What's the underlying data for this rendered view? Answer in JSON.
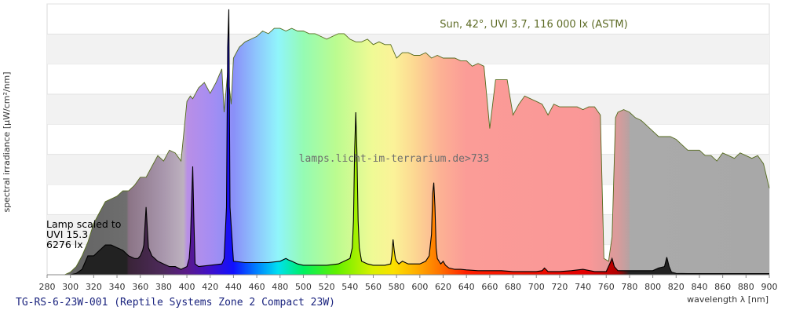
{
  "chart_data": {
    "type": "area",
    "title": "TG-RS-6-23W-001 (Reptile Systems Zone 2 Compact 23W)",
    "xlabel": "wavelength λ [nm]",
    "ylabel": "spectral irradiance [µW/cm²/nm]",
    "xlim": [
      280,
      900
    ],
    "x_ticks": [
      "280",
      "300",
      "320",
      "340",
      "360",
      "380",
      "400",
      "420",
      "440",
      "460",
      "480",
      "500",
      "520",
      "540",
      "560",
      "580",
      "600",
      "620",
      "640",
      "660",
      "680",
      "700",
      "720",
      "740",
      "760",
      "780",
      "800",
      "820",
      "840",
      "860",
      "880",
      "900"
    ],
    "ylim": [
      0,
      1
    ],
    "grid": "horizontal bands",
    "sun_label": "Sun, 42°, UVI 3.7, 116 000 lx (ASTM)",
    "lamp_label_lines": [
      "Lamp scaled to",
      "UVI 15.3",
      "6276 lx"
    ],
    "watermark": "lamps.licht-im-terrarium.de>733",
    "series": [
      {
        "name": "Sun, 42°, UVI 3.7, 116 000 lx (ASTM)",
        "x": [
          280,
          290,
          295,
          300,
          305,
          310,
          315,
          320,
          325,
          330,
          335,
          340,
          345,
          350,
          355,
          360,
          365,
          370,
          375,
          380,
          385,
          390,
          395,
          400,
          403,
          405,
          410,
          415,
          420,
          425,
          430,
          432,
          435,
          438,
          440,
          445,
          450,
          455,
          460,
          465,
          470,
          475,
          480,
          485,
          490,
          495,
          500,
          505,
          510,
          515,
          520,
          525,
          530,
          535,
          540,
          545,
          550,
          555,
          560,
          565,
          570,
          575,
          580,
          585,
          590,
          595,
          600,
          605,
          610,
          615,
          620,
          625,
          630,
          635,
          640,
          645,
          650,
          655,
          660,
          665,
          670,
          675,
          680,
          685,
          690,
          695,
          700,
          705,
          710,
          715,
          720,
          725,
          730,
          735,
          740,
          745,
          750,
          755,
          758,
          762,
          765,
          768,
          770,
          775,
          780,
          785,
          790,
          795,
          800,
          805,
          810,
          815,
          820,
          825,
          830,
          835,
          840,
          845,
          850,
          855,
          860,
          865,
          870,
          875,
          880,
          885,
          890,
          895,
          900
        ],
        "values": [
          0,
          0,
          0,
          0.01,
          0.03,
          0.07,
          0.12,
          0.19,
          0.23,
          0.27,
          0.28,
          0.29,
          0.31,
          0.31,
          0.33,
          0.36,
          0.36,
          0.4,
          0.44,
          0.42,
          0.46,
          0.45,
          0.42,
          0.64,
          0.66,
          0.65,
          0.69,
          0.71,
          0.67,
          0.71,
          0.76,
          0.6,
          0.75,
          0.63,
          0.8,
          0.84,
          0.86,
          0.87,
          0.88,
          0.9,
          0.89,
          0.91,
          0.91,
          0.9,
          0.91,
          0.9,
          0.9,
          0.89,
          0.89,
          0.88,
          0.87,
          0.88,
          0.89,
          0.89,
          0.87,
          0.86,
          0.86,
          0.87,
          0.85,
          0.86,
          0.85,
          0.85,
          0.8,
          0.82,
          0.82,
          0.81,
          0.81,
          0.82,
          0.8,
          0.81,
          0.8,
          0.8,
          0.8,
          0.79,
          0.79,
          0.77,
          0.78,
          0.77,
          0.54,
          0.72,
          0.72,
          0.72,
          0.59,
          0.63,
          0.66,
          0.65,
          0.64,
          0.63,
          0.59,
          0.63,
          0.62,
          0.62,
          0.62,
          0.62,
          0.61,
          0.62,
          0.62,
          0.59,
          0.06,
          0.05,
          0.14,
          0.58,
          0.6,
          0.61,
          0.6,
          0.58,
          0.57,
          0.55,
          0.53,
          0.51,
          0.51,
          0.51,
          0.5,
          0.48,
          0.46,
          0.46,
          0.46,
          0.44,
          0.44,
          0.42,
          0.45,
          0.44,
          0.43,
          0.45,
          0.44,
          0.43,
          0.44,
          0.41,
          0.32
        ]
      },
      {
        "name": "Lamp scaled to UVI 15.3, 6276 lx",
        "x": [
          280,
          295,
          300,
          305,
          310,
          315,
          320,
          325,
          330,
          335,
          340,
          345,
          350,
          355,
          358,
          360,
          362,
          363,
          365,
          367,
          370,
          375,
          380,
          385,
          390,
          395,
          400,
          402,
          403,
          405,
          406,
          407,
          410,
          420,
          430,
          432,
          434,
          435,
          436,
          437,
          440,
          450,
          460,
          470,
          480,
          485,
          487,
          490,
          495,
          500,
          510,
          520,
          530,
          540,
          542,
          543,
          544,
          545,
          546,
          547,
          548,
          550,
          555,
          560,
          570,
          575,
          576,
          577,
          578,
          579,
          580,
          582,
          585,
          590,
          595,
          600,
          605,
          608,
          610,
          611,
          612,
          613,
          614,
          615,
          618,
          620,
          622,
          625,
          630,
          635,
          640,
          650,
          660,
          670,
          680,
          690,
          700,
          705,
          707,
          710,
          720,
          730,
          740,
          750,
          760,
          763,
          765,
          767,
          770,
          780,
          790,
          800,
          805,
          810,
          812,
          814,
          816,
          820,
          830,
          840,
          850,
          860,
          870,
          880,
          890,
          900
        ],
        "values": [
          0,
          0,
          0,
          0.005,
          0.02,
          0.07,
          0.07,
          0.09,
          0.11,
          0.11,
          0.1,
          0.09,
          0.07,
          0.06,
          0.06,
          0.07,
          0.09,
          0.11,
          0.25,
          0.1,
          0.07,
          0.05,
          0.04,
          0.03,
          0.03,
          0.02,
          0.03,
          0.06,
          0.12,
          0.4,
          0.2,
          0.04,
          0.03,
          0.035,
          0.04,
          0.06,
          0.25,
          0.84,
          0.98,
          0.25,
          0.05,
          0.045,
          0.045,
          0.045,
          0.05,
          0.06,
          0.055,
          0.05,
          0.04,
          0.035,
          0.035,
          0.035,
          0.04,
          0.06,
          0.1,
          0.2,
          0.45,
          0.6,
          0.45,
          0.2,
          0.1,
          0.05,
          0.04,
          0.035,
          0.035,
          0.04,
          0.07,
          0.13,
          0.09,
          0.06,
          0.05,
          0.04,
          0.05,
          0.04,
          0.04,
          0.04,
          0.05,
          0.07,
          0.15,
          0.3,
          0.34,
          0.25,
          0.1,
          0.06,
          0.04,
          0.05,
          0.035,
          0.025,
          0.02,
          0.02,
          0.018,
          0.015,
          0.015,
          0.015,
          0.012,
          0.012,
          0.012,
          0.015,
          0.025,
          0.012,
          0.012,
          0.015,
          0.02,
          0.012,
          0.012,
          0.04,
          0.06,
          0.03,
          0.015,
          0.015,
          0.015,
          0.015,
          0.025,
          0.03,
          0.065,
          0.03,
          0.01,
          0.005,
          0.004,
          0.004,
          0.004,
          0.004,
          0.004,
          0.004,
          0.004,
          0.004
        ]
      }
    ]
  }
}
